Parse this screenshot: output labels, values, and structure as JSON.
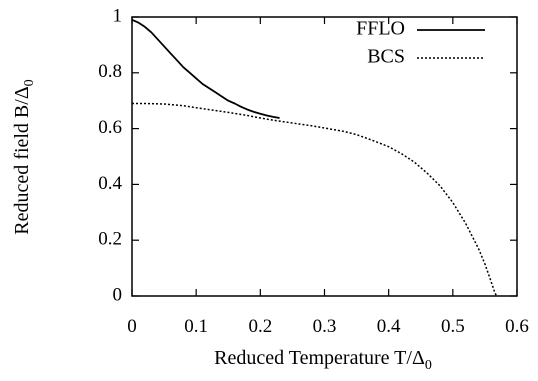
{
  "chart_data": {
    "type": "line",
    "xlabel": "Reduced Temperature T/Δ",
    "xlabel_sub": "0",
    "ylabel": "Reduced field B/Δ",
    "ylabel_sub": "0",
    "xlim": [
      0,
      0.6
    ],
    "ylim": [
      0,
      1
    ],
    "xticks": [
      "0",
      "0.1",
      "0.2",
      "0.3",
      "0.4",
      "0.5",
      "0.6"
    ],
    "yticks": [
      "0",
      "0.2",
      "0.4",
      "0.6",
      "0.8",
      "1"
    ],
    "grid": false,
    "legend_position": "top-right",
    "series": [
      {
        "name": "FFLO",
        "style": "solid",
        "x": [
          0,
          0.01,
          0.02,
          0.03,
          0.04,
          0.05,
          0.06,
          0.07,
          0.08,
          0.09,
          0.1,
          0.11,
          0.12,
          0.13,
          0.14,
          0.15,
          0.16,
          0.17,
          0.18,
          0.19,
          0.2,
          0.21,
          0.22,
          0.23
        ],
        "y": [
          0.99,
          0.98,
          0.965,
          0.945,
          0.92,
          0.895,
          0.87,
          0.845,
          0.82,
          0.8,
          0.78,
          0.76,
          0.745,
          0.73,
          0.715,
          0.7,
          0.69,
          0.678,
          0.668,
          0.66,
          0.653,
          0.647,
          0.642,
          0.638
        ]
      },
      {
        "name": "BCS",
        "style": "dotted",
        "x": [
          0,
          0.02,
          0.05,
          0.08,
          0.1,
          0.12,
          0.15,
          0.18,
          0.2,
          0.22,
          0.25,
          0.28,
          0.3,
          0.33,
          0.35,
          0.37,
          0.4,
          0.42,
          0.44,
          0.46,
          0.48,
          0.5,
          0.52,
          0.54,
          0.55,
          0.56,
          0.565,
          0.568
        ],
        "y": [
          0.69,
          0.69,
          0.688,
          0.682,
          0.675,
          0.668,
          0.658,
          0.647,
          0.638,
          0.63,
          0.62,
          0.61,
          0.602,
          0.59,
          0.578,
          0.562,
          0.535,
          0.51,
          0.48,
          0.44,
          0.395,
          0.335,
          0.26,
          0.17,
          0.115,
          0.05,
          0.015,
          0
        ]
      }
    ]
  }
}
